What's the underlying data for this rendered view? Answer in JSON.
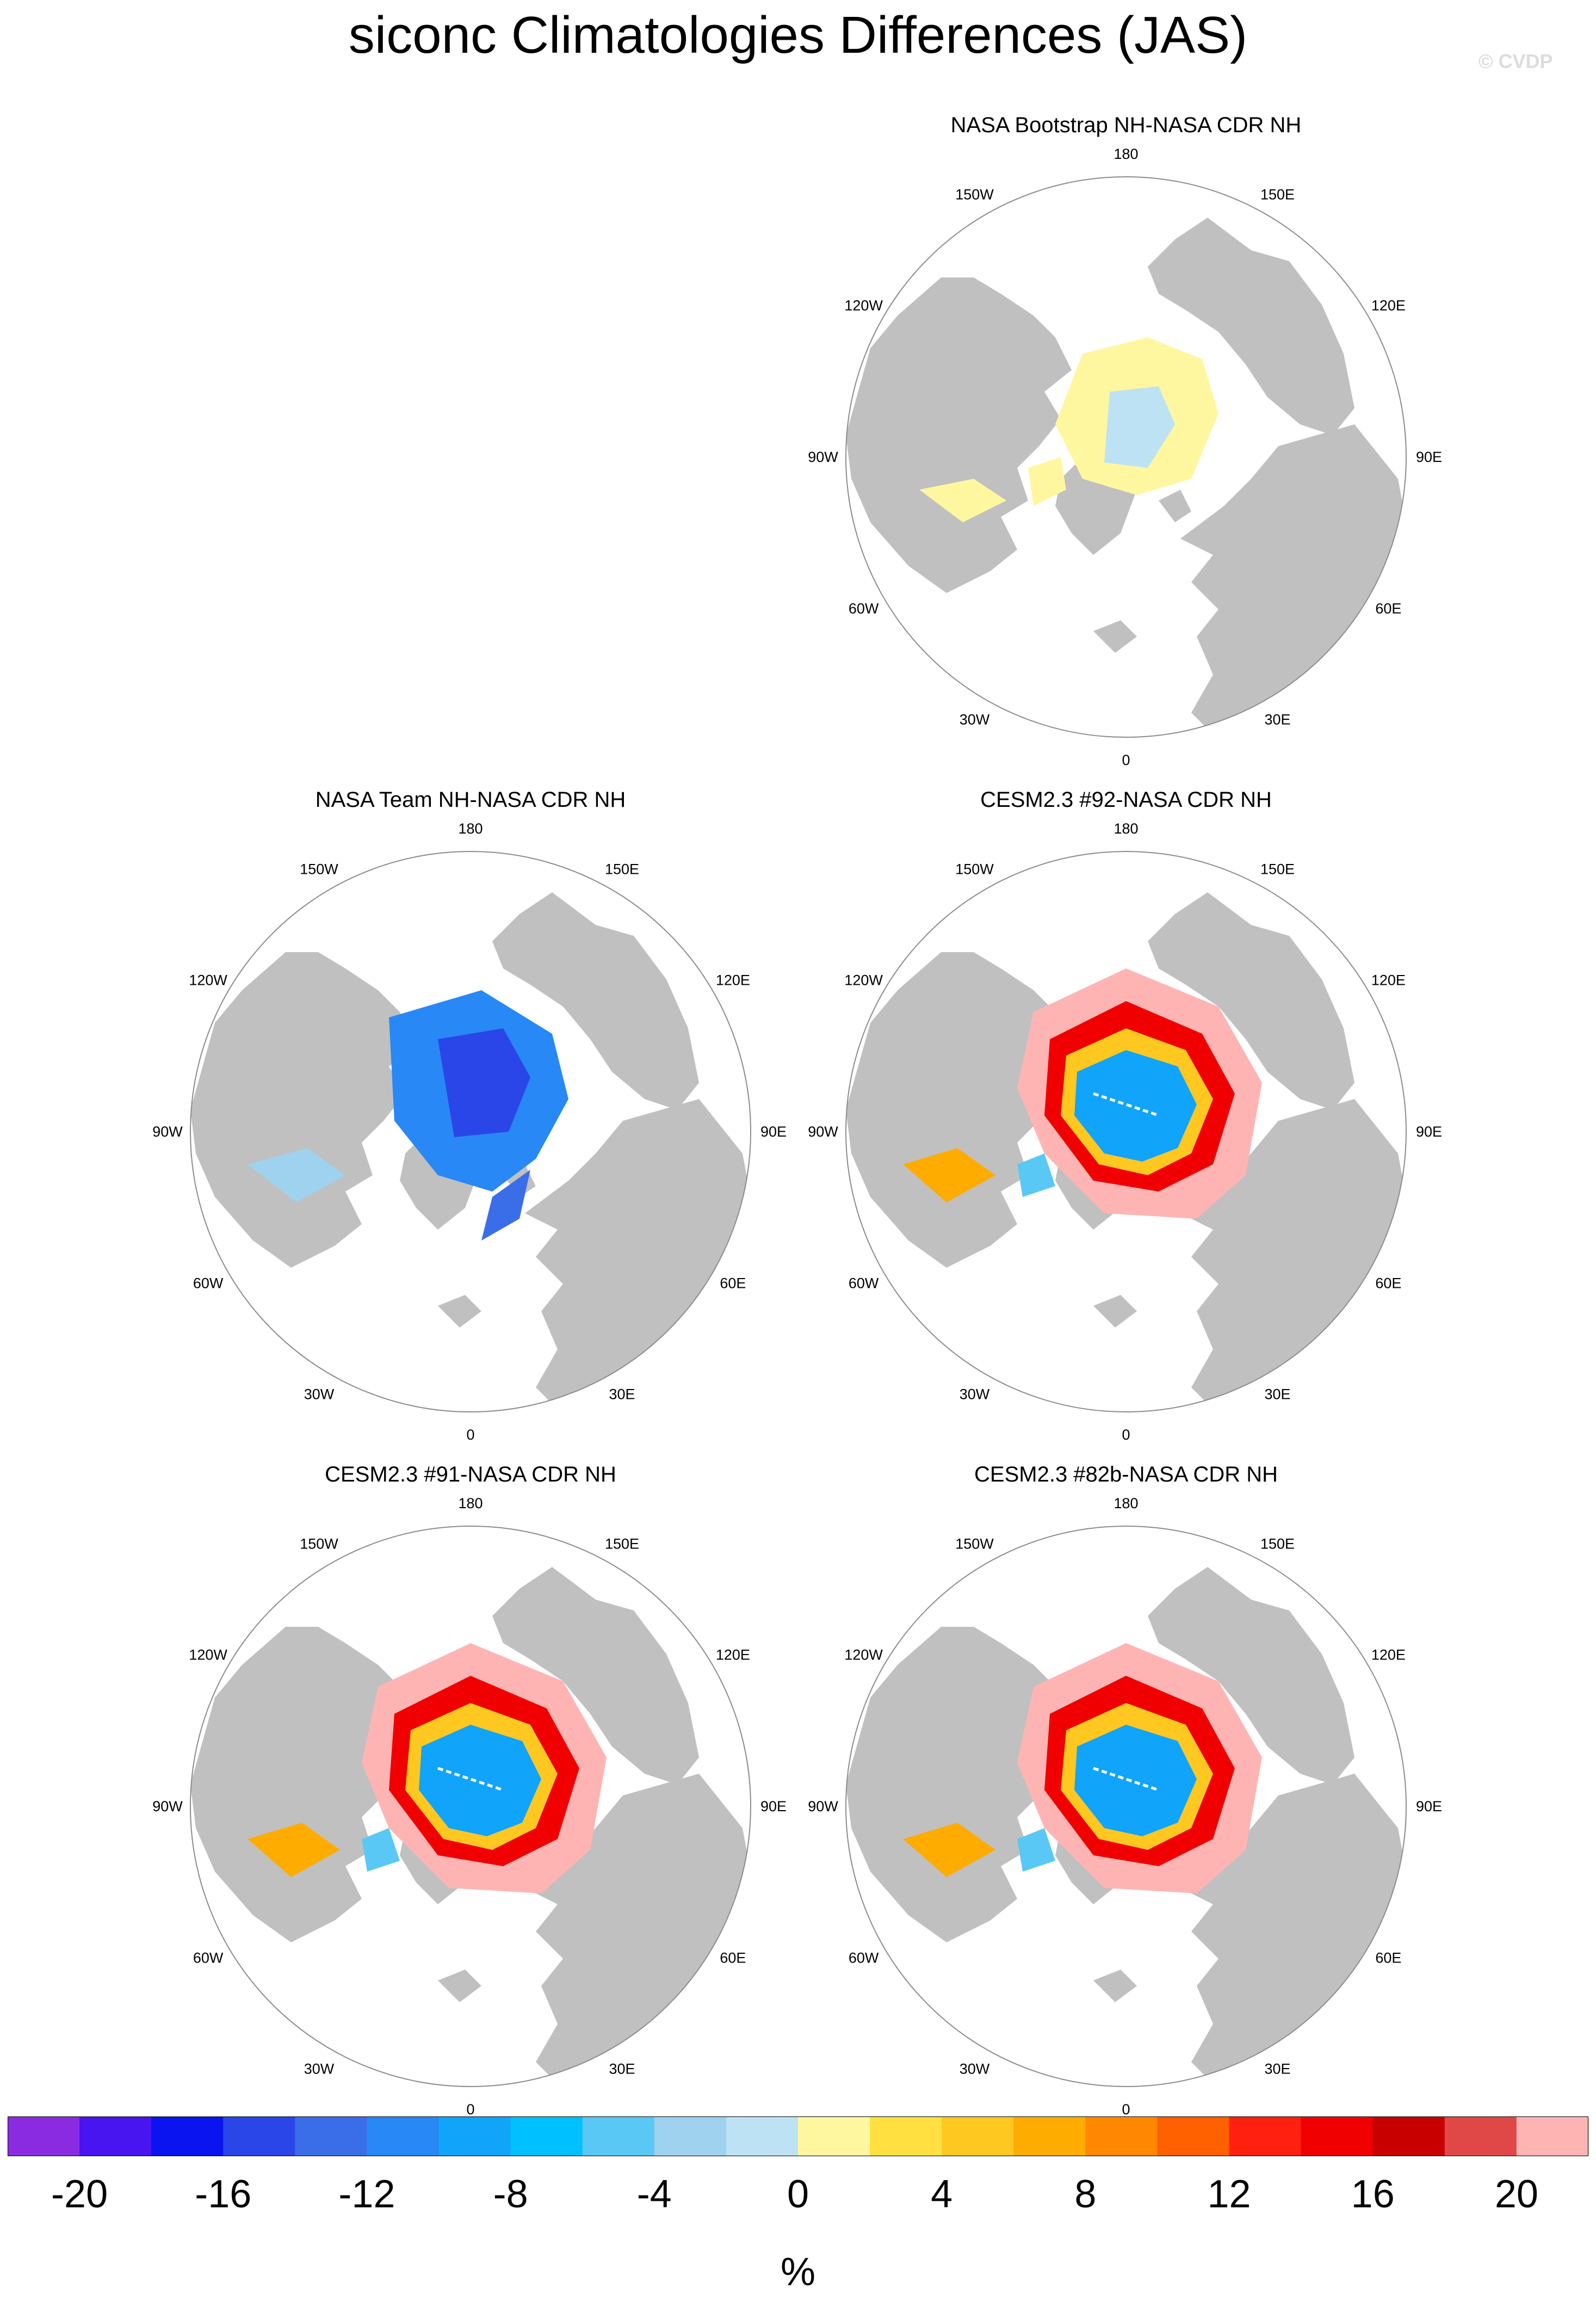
{
  "title": "siconc Climatologies Differences (JAS)",
  "credit": "© CVDP",
  "lon_labels": [
    "180",
    "150E",
    "120E",
    "90E",
    "60E",
    "30E",
    "0",
    "30W",
    "60W",
    "90W",
    "120W",
    "150W"
  ],
  "panels": [
    {
      "id": "bootstrap",
      "title": "NASA Bootstrap NH-NASA CDR NH",
      "pattern": "bootstrap"
    },
    {
      "id": "team",
      "title": "NASA Team NH-NASA CDR NH",
      "pattern": "team"
    },
    {
      "id": "cesm92",
      "title": "CESM2.3 #92-NASA CDR NH",
      "pattern": "model"
    },
    {
      "id": "cesm91",
      "title": "CESM2.3 #91-NASA CDR NH",
      "pattern": "model"
    },
    {
      "id": "cesm82b",
      "title": "CESM2.3 #82b-NASA CDR NH",
      "pattern": "model"
    }
  ],
  "colors": {
    "land": "#c0c0c0",
    "ocean": "#ffffff",
    "outline": "#8c8c8c"
  },
  "colorbar": {
    "units": "%",
    "colors": [
      "#8a2be2",
      "#4814f0",
      "#0a14f0",
      "#2a46e8",
      "#3a6ee8",
      "#2888f5",
      "#10a4fa",
      "#00c0ff",
      "#5ac8f5",
      "#9ed2ee",
      "#bde2f4",
      "#fff7a0",
      "#ffe040",
      "#ffc820",
      "#ffac00",
      "#ff8800",
      "#ff6000",
      "#ff2010",
      "#f00000",
      "#c80000",
      "#e04848",
      "#ffb4b4"
    ],
    "tick_labels": [
      "-20",
      "-16",
      "-12",
      "-8",
      "-4",
      "0",
      "4",
      "8",
      "12",
      "16",
      "20"
    ],
    "tick_boundaries": [
      1,
      3,
      5,
      7,
      9,
      11,
      13,
      15,
      17,
      19,
      21
    ]
  }
}
